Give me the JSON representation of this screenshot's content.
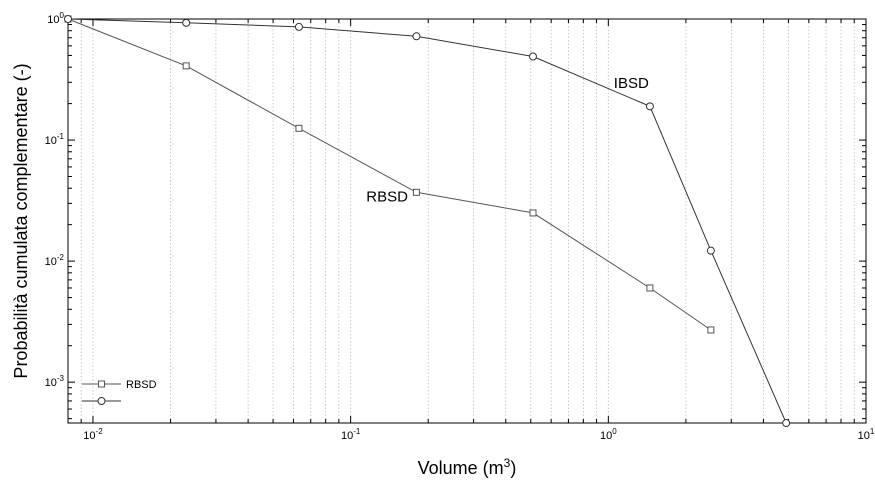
{
  "chart_data": {
    "type": "line",
    "xlabel": "Volume (m",
    "xlabel_sup": "3",
    "xlabel_close": ")",
    "ylabel": "Probabilità cumulata complementare (-)",
    "xscale": "log",
    "yscale": "log",
    "xlim": [
      0.008,
      10
    ],
    "ylim": [
      0.00046,
      1
    ],
    "grid": "vertical minor dotted",
    "legend_position": "bottom-left",
    "x_ticks": [
      {
        "value": 0.01,
        "base": "10",
        "exp": "-2"
      },
      {
        "value": 0.1,
        "base": "10",
        "exp": "-1"
      },
      {
        "value": 1,
        "base": "10",
        "exp": "0"
      },
      {
        "value": 10,
        "base": "10",
        "exp": "1"
      }
    ],
    "y_ticks": [
      {
        "value": 0.001,
        "base": "10",
        "exp": "-3"
      },
      {
        "value": 0.01,
        "base": "10",
        "exp": "-2"
      },
      {
        "value": 0.1,
        "base": "10",
        "exp": "-1"
      },
      {
        "value": 1,
        "base": "10",
        "exp": "0"
      }
    ],
    "series": [
      {
        "name": "RBSD",
        "marker": "square",
        "color": "#555555",
        "x": [
          0.008,
          0.023,
          0.063,
          0.18,
          0.51,
          1.45,
          2.5
        ],
        "y": [
          1.0,
          0.41,
          0.125,
          0.037,
          0.025,
          0.006,
          0.0027
        ]
      },
      {
        "name": "",
        "marker": "circle",
        "color": "#333333",
        "x": [
          0.008,
          0.023,
          0.063,
          0.18,
          0.51,
          1.45,
          2.5,
          4.9
        ],
        "y": [
          1.0,
          0.93,
          0.86,
          0.72,
          0.49,
          0.19,
          0.0122,
          0.00046
        ]
      }
    ],
    "annotations": [
      {
        "text": "IBSD",
        "x": 1.05,
        "y": 0.27
      },
      {
        "text": "RBSD",
        "x": 0.115,
        "y": 0.031
      }
    ],
    "legend": {
      "entries": [
        "RBSD",
        ""
      ]
    }
  }
}
